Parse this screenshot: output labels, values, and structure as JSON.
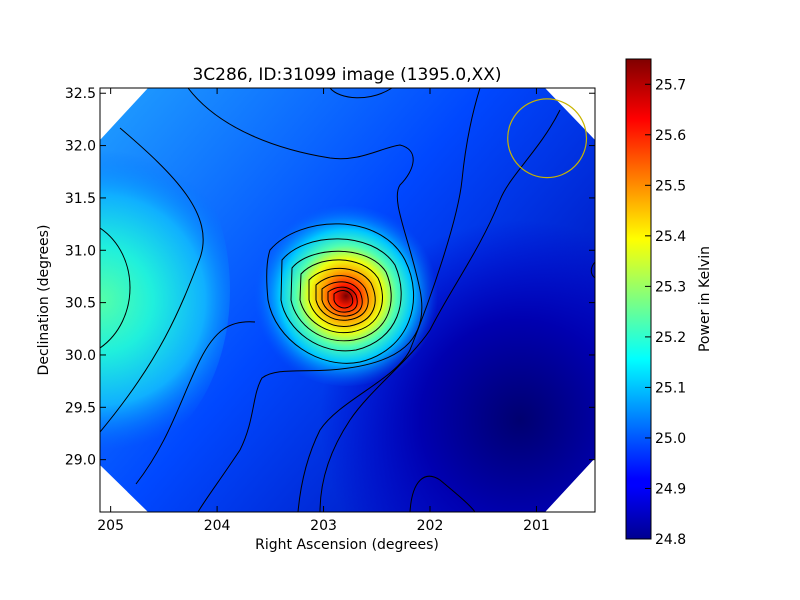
{
  "chart_data": {
    "type": "heatmap",
    "title": "3C286, ID:31099 image (1395.0,XX)",
    "xlabel": "Right Ascension (degrees)",
    "ylabel": "Declination (degrees)",
    "xlim": [
      205.1,
      200.45
    ],
    "ylim": [
      28.5,
      32.55
    ],
    "x_ticks": [
      {
        "value": 205,
        "label": "205"
      },
      {
        "value": 204,
        "label": "204"
      },
      {
        "value": 203,
        "label": "203"
      },
      {
        "value": 202,
        "label": "202"
      },
      {
        "value": 201,
        "label": "201"
      }
    ],
    "y_ticks": [
      {
        "value": 29.0,
        "label": "29.0"
      },
      {
        "value": 29.5,
        "label": "29.5"
      },
      {
        "value": 30.0,
        "label": "30.0"
      },
      {
        "value": 30.5,
        "label": "30.5"
      },
      {
        "value": 31.0,
        "label": "31.0"
      },
      {
        "value": 31.5,
        "label": "31.5"
      },
      {
        "value": 32.0,
        "label": "32.0"
      },
      {
        "value": 32.5,
        "label": "32.5"
      }
    ],
    "peak": {
      "ra": 202.78,
      "dec": 30.52,
      "value": 25.75
    },
    "background_min": 24.8,
    "beam_marker": {
      "ra": 200.9,
      "dec": 32.07,
      "radius_deg": 0.37,
      "color": "#c8b400"
    },
    "grid": false,
    "colorbar": {
      "label": "Power in Kelvin",
      "min": 24.8,
      "max": 25.75,
      "colormap": "jet",
      "ticks": [
        {
          "value": 24.8,
          "label": "24.8"
        },
        {
          "value": 24.9,
          "label": "24.9"
        },
        {
          "value": 25.0,
          "label": "25.0"
        },
        {
          "value": 25.1,
          "label": "25.1"
        },
        {
          "value": 25.2,
          "label": "25.2"
        },
        {
          "value": 25.3,
          "label": "25.3"
        },
        {
          "value": 25.4,
          "label": "25.4"
        },
        {
          "value": 25.5,
          "label": "25.5"
        },
        {
          "value": 25.6,
          "label": "25.6"
        },
        {
          "value": 25.7,
          "label": "25.7"
        }
      ]
    }
  }
}
